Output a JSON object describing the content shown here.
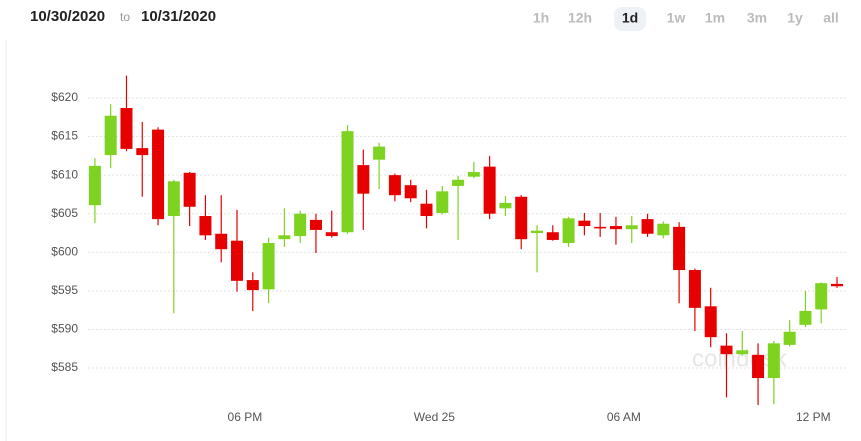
{
  "header": {
    "from": "10/30/2020",
    "separator": "to",
    "to": "10/31/2020",
    "ranges": [
      "1h",
      "12h",
      "1d",
      "1w",
      "1m",
      "3m",
      "1y",
      "all"
    ],
    "selected": "1d"
  },
  "watermark": "coindesk",
  "chart_data": {
    "type": "candlestick",
    "open": [
      606.1,
      612.6,
      618.7,
      613.5,
      615.9,
      604.7,
      610.3,
      604.7,
      602.4,
      601.5,
      596.4,
      595.2,
      601.7,
      602.1,
      604.2,
      602.6,
      602.6,
      611.3,
      612.0,
      610.0,
      608.7,
      606.3,
      605.1,
      608.6,
      609.8,
      611.1,
      605.7,
      607.2,
      602.5,
      602.6,
      601.2,
      604.1,
      603.3,
      603.4,
      603.0,
      604.3,
      602.2,
      603.3,
      597.7,
      593.0,
      587.9,
      586.8,
      586.7,
      583.7,
      588.0,
      590.6,
      592.6,
      595.9
    ],
    "high": [
      612.2,
      619.2,
      622.9,
      616.9,
      616.2,
      609.4,
      610.4,
      607.4,
      607.4,
      605.5,
      597.4,
      601.9,
      605.7,
      605.4,
      605.0,
      605.4,
      616.5,
      613.3,
      614.2,
      610.2,
      609.4,
      608.1,
      608.6,
      609.9,
      611.7,
      612.5,
      607.3,
      607.4,
      603.5,
      603.5,
      604.6,
      605.1,
      605.1,
      604.6,
      604.7,
      605.0,
      604.0,
      603.9,
      597.9,
      595.4,
      589.5,
      589.8,
      588.2,
      588.5,
      591.2,
      595.0,
      596.1,
      596.8
    ],
    "low": [
      603.8,
      610.9,
      613.1,
      607.2,
      603.5,
      592.1,
      603.4,
      601.6,
      598.7,
      594.9,
      592.4,
      593.4,
      600.7,
      601.2,
      599.9,
      601.9,
      602.4,
      602.9,
      608.2,
      606.6,
      606.5,
      603.1,
      604.9,
      601.6,
      609.6,
      604.3,
      604.7,
      600.4,
      597.4,
      601.5,
      600.7,
      602.2,
      602.0,
      601.0,
      601.2,
      602.0,
      601.8,
      593.4,
      589.8,
      587.7,
      581.2,
      586.6,
      580.2,
      580.3,
      587.8,
      590.3,
      590.8,
      595.4
    ],
    "close": [
      611.2,
      617.7,
      613.4,
      612.6,
      604.3,
      609.2,
      605.9,
      602.2,
      600.4,
      596.3,
      595.1,
      601.2,
      602.2,
      605.0,
      602.9,
      602.1,
      615.7,
      607.6,
      613.7,
      607.4,
      607.0,
      604.7,
      607.9,
      609.4,
      610.4,
      605.0,
      606.4,
      601.7,
      602.8,
      601.6,
      604.4,
      603.4,
      603.1,
      603.0,
      603.5,
      602.4,
      603.7,
      597.7,
      592.8,
      589.0,
      586.8,
      587.3,
      583.7,
      588.2,
      589.7,
      592.4,
      596.0,
      595.6
    ],
    "up_color": "#7ed321",
    "down_color": "#e60000",
    "ylim": [
      580,
      625
    ],
    "yticks": [
      {
        "value": 585,
        "label": "$585"
      },
      {
        "value": 590,
        "label": "$590"
      },
      {
        "value": 595,
        "label": "$595"
      },
      {
        "value": 600,
        "label": "$600"
      },
      {
        "value": 605,
        "label": "$605"
      },
      {
        "value": 610,
        "label": "$610"
      },
      {
        "value": 615,
        "label": "$615"
      },
      {
        "value": 620,
        "label": "$620"
      }
    ],
    "xlim": [
      -0.5,
      48
    ],
    "xticks": [
      {
        "value": 9.5,
        "label": "06 PM"
      },
      {
        "value": 21.5,
        "label": "Wed 25"
      },
      {
        "value": 33.5,
        "label": "06 AM"
      },
      {
        "value": 45.5,
        "label": "12 PM"
      }
    ],
    "grid": true
  }
}
